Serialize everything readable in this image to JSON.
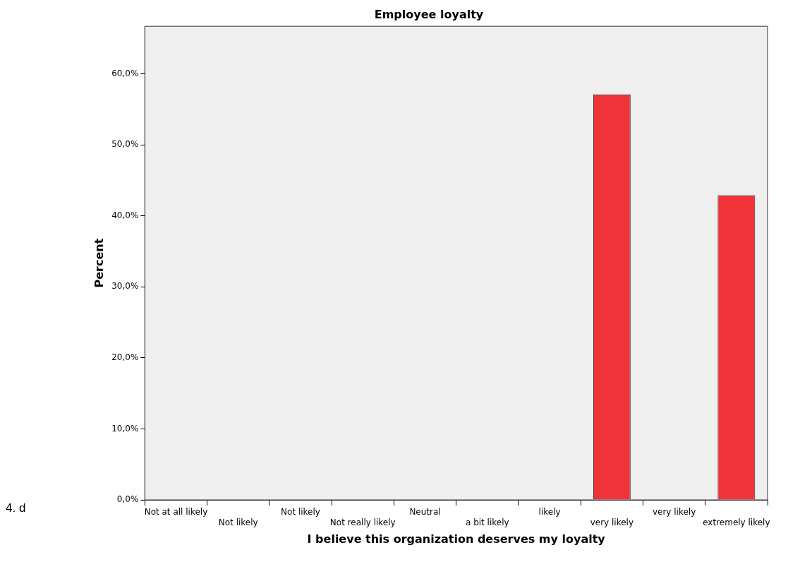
{
  "chart_data": {
    "type": "bar",
    "title": "Employee loyalty",
    "xlabel": "I believe this organization deserves my loyalty",
    "ylabel": "Percent",
    "categories": [
      "Not at all likely",
      "Not likely",
      "Not likely",
      "Not really likely",
      "Neutral",
      "a bit likely",
      "likely",
      "very likely",
      "very likely",
      "extremely likely"
    ],
    "values": [
      0,
      0,
      0,
      0,
      0,
      0,
      0,
      57.1,
      0,
      42.9
    ],
    "color": "#ef3339",
    "ylim": [
      0,
      66.7
    ],
    "yticks": [
      {
        "value": 0,
        "label": "0,0%"
      },
      {
        "value": 10,
        "label": "10,0%"
      },
      {
        "value": 20,
        "label": "20,0%"
      },
      {
        "value": 30,
        "label": "30,0%"
      },
      {
        "value": 40,
        "label": "40,0%"
      },
      {
        "value": 50,
        "label": "50,0%"
      },
      {
        "value": 60,
        "label": "60,0%"
      }
    ],
    "grid": false,
    "legend": false,
    "annotations": [
      "4. d"
    ]
  }
}
